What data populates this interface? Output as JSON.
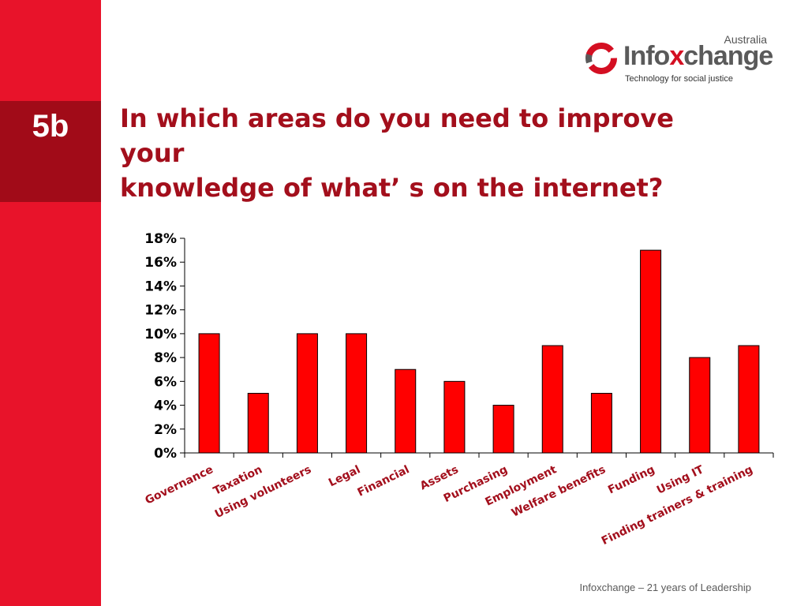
{
  "slide": {
    "number": "5b"
  },
  "title": "In which areas do you need to improve your\nknowledge of whatʼ s on the internet?",
  "logo": {
    "country": "Australia",
    "name_prefix": "Info",
    "name_accent": "x",
    "name_suffix": "change",
    "tagline": "Technology for social justice"
  },
  "footer": "Infoxchange – 21 years of Leadership",
  "colors": {
    "sidebar": "#e8132a",
    "slide_num_block": "#a10b18",
    "title": "#a30f1c",
    "bar": "#ff0000"
  },
  "chart_data": {
    "type": "bar",
    "categories": [
      "Governance",
      "Taxation",
      "Using volunteers",
      "Legal",
      "Financial",
      "Assets",
      "Purchasing",
      "Employment",
      "Welfare benefits",
      "Funding",
      "Using IT",
      "Finding trainers & training"
    ],
    "values": [
      10,
      5,
      10,
      10,
      7,
      6,
      4,
      9,
      5,
      17,
      8,
      9
    ],
    "ylim": [
      0,
      18
    ],
    "yticks": [
      0,
      2,
      4,
      6,
      8,
      10,
      12,
      14,
      16,
      18
    ],
    "ytick_labels": [
      "0%",
      "2%",
      "4%",
      "6%",
      "8%",
      "10%",
      "12%",
      "14%",
      "16%",
      "18%"
    ],
    "title": "",
    "xlabel": "",
    "ylabel": "",
    "grid": false,
    "legend": "none"
  }
}
